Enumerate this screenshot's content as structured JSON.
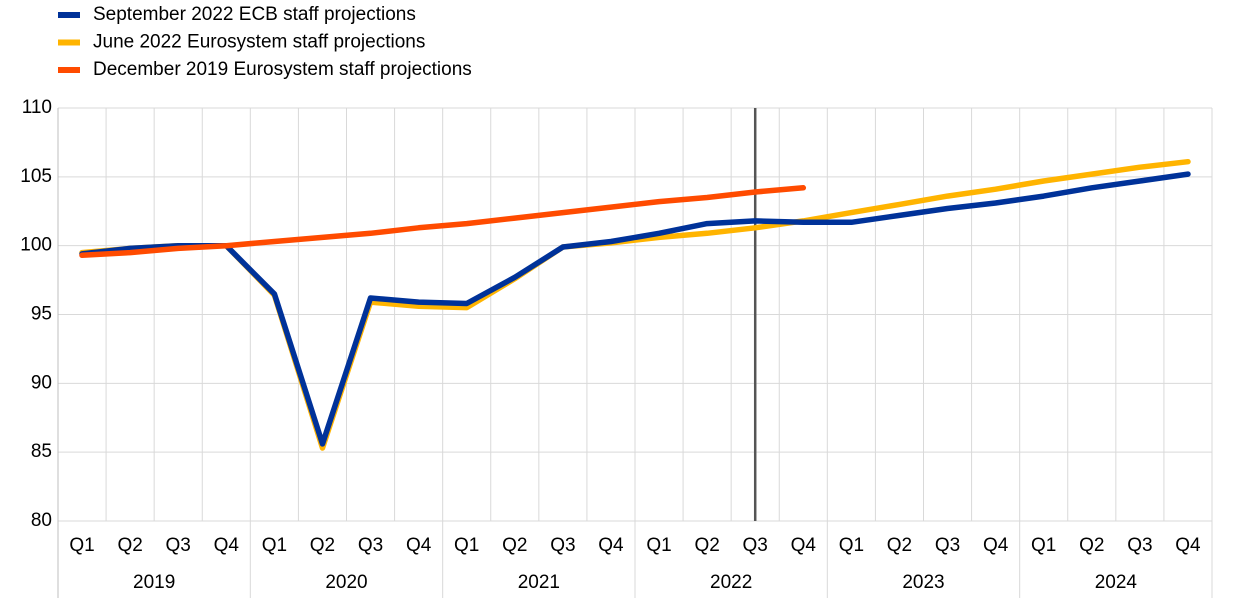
{
  "chart_data": {
    "type": "line",
    "categories": [
      "Q1",
      "Q2",
      "Q3",
      "Q4",
      "Q1",
      "Q2",
      "Q3",
      "Q4",
      "Q1",
      "Q2",
      "Q3",
      "Q4",
      "Q1",
      "Q2",
      "Q3",
      "Q4",
      "Q1",
      "Q2",
      "Q3",
      "Q4",
      "Q1",
      "Q2",
      "Q3",
      "Q4"
    ],
    "years": [
      "2019",
      "2020",
      "2021",
      "2022",
      "2023",
      "2024"
    ],
    "series": [
      {
        "name": "September 2022 ECB staff projections",
        "color": "#003299",
        "values": [
          99.4,
          99.8,
          100.0,
          100.0,
          96.5,
          85.6,
          96.2,
          95.9,
          95.8,
          97.7,
          99.9,
          100.3,
          100.9,
          101.6,
          101.8,
          101.7,
          101.7,
          102.2,
          102.7,
          103.1,
          103.6,
          104.2,
          104.7,
          105.2
        ]
      },
      {
        "name": "June 2022 Eurosystem staff projections",
        "color": "#ffb400",
        "values": [
          99.5,
          99.8,
          100.0,
          100.0,
          96.4,
          85.3,
          95.9,
          95.6,
          95.5,
          97.6,
          99.9,
          100.2,
          100.6,
          100.9,
          101.3,
          101.8,
          102.4,
          103.0,
          103.6,
          104.1,
          104.7,
          105.2,
          105.7,
          106.1
        ]
      },
      {
        "name": "December 2019 Eurosystem staff projections",
        "color": "#ff4b00",
        "values": [
          99.3,
          99.5,
          99.8,
          100.0,
          100.3,
          100.6,
          100.9,
          101.3,
          101.6,
          102.0,
          102.4,
          102.8,
          103.2,
          103.5,
          103.9,
          104.2,
          null,
          null,
          null,
          null,
          null,
          null,
          null,
          null
        ]
      }
    ],
    "vertical_line": {
      "year": "2022",
      "quarter": "Q3"
    },
    "ylim": [
      80,
      110
    ],
    "yticks": [
      80,
      85,
      90,
      95,
      100,
      105,
      110
    ],
    "grid": true,
    "legend": "top-left"
  }
}
